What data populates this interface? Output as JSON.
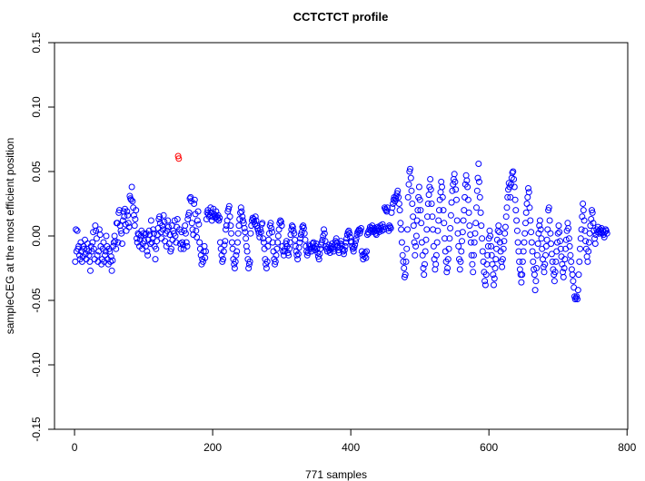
{
  "chart_data": {
    "type": "scatter",
    "title": "CCTCTCT profile",
    "xlabel": "771 samples",
    "ylabel": "sampleCEG at the most efficient position",
    "xlim": [
      -29,
      801
    ],
    "ylim": [
      -0.15,
      0.15
    ],
    "x_ticks": [
      0,
      200,
      400,
      600,
      800
    ],
    "x_tick_labels": [
      "0",
      "200",
      "400",
      "600",
      "800"
    ],
    "y_ticks": [
      -0.15,
      -0.1,
      -0.05,
      0,
      0.05,
      0.1,
      0.15
    ],
    "y_tick_labels": [
      "-0.15",
      "-0.10",
      "-0.05",
      "0.00",
      "0.05",
      "0.10",
      "0.15"
    ],
    "grid": false,
    "marker": "open-circle",
    "point_color": "#0000ff",
    "highlight_color": "#ff0000",
    "highlight_x": [
      150,
      151
    ],
    "x": "sample index 1..771",
    "y": [
      -0.02,
      0.005,
      -0.012,
      0.004,
      -0.01,
      -0.008,
      -0.015,
      -0.018,
      -0.005,
      -0.012,
      -0.02,
      -0.016,
      -0.008,
      -0.01,
      -0.003,
      -0.014,
      -0.018,
      -0.01,
      -0.006,
      -0.012,
      -0.015,
      -0.02,
      -0.027,
      -0.008,
      -0.012,
      -0.005,
      0.003,
      -0.01,
      -0.018,
      0.008,
      0.004,
      -0.002,
      -0.015,
      -0.02,
      -0.012,
      0.005,
      0.001,
      -0.008,
      -0.022,
      -0.018,
      -0.01,
      -0.005,
      -0.02,
      -0.015,
      -0.012,
      0,
      -0.008,
      -0.018,
      -0.022,
      -0.01,
      -0.012,
      -0.02,
      -0.016,
      -0.027,
      -0.019,
      -0.008,
      -0.005,
      0,
      -0.004,
      -0.01,
      0.01,
      0.01,
      -0.005,
      0.018,
      0.02,
      0.008,
      0.004,
      0.002,
      -0.006,
      0.012,
      0.019,
      0.015,
      0.021,
      0.009,
      0.004,
      0.019,
      0.016,
      0.01,
      0.007,
      0.031,
      0.029,
      0.028,
      0.038,
      0.027,
      0.022,
      0.016,
      0.008,
      0.013,
      0.02,
      -0.002,
      -0.005,
      0.002,
      0.001,
      -0.008,
      -0.003,
      0,
      0.004,
      -0.01,
      -0.006,
      0.002,
      -0.004,
      0.001,
      -0.008,
      0.002,
      -0.012,
      -0.015,
      -0.003,
      0.004,
      0.001,
      -0.006,
      0.012,
      -0.005,
      -0.002,
      0.005,
      0.002,
      -0.008,
      -0.018,
      -0.01,
      -0.004,
      0.001,
      0.006,
      0.013,
      0.015,
      0.01,
      0.003,
      -0.002,
      0.008,
      0.005,
      0.016,
      0.011,
      -0.004,
      0.002,
      -0.008,
      0.004,
      0.012,
      0.007,
      -0.006,
      0.001,
      -0.012,
      -0.01,
      0.008,
      -0.003,
      0.004,
      0.002,
      0.012,
      0,
      -0.005,
      0.007,
      0.013,
      0.062,
      0.06,
      0.005,
      -0.006,
      -0.01,
      0.003,
      -0.005,
      -0.007,
      -0.01,
      0.004,
      0.008,
      0.002,
      -0.005,
      -0.008,
      0.013,
      0.016,
      0.018,
      0.029,
      0.03,
      0.027,
      0.01,
      0.005,
      0.001,
      0.025,
      0.028,
      0.017,
      0.004,
      -0.001,
      0.012,
      0.019,
      0.009,
      -0.005,
      -0.01,
      -0.015,
      -0.022,
      -0.018,
      -0.02,
      -0.012,
      -0.008,
      -0.017,
      -0.012,
      0.013,
      0.018,
      0.02,
      0.017,
      0.015,
      0.016,
      0.022,
      0.018,
      0.012,
      0.015,
      0.021,
      0.017,
      0.016,
      0.014,
      0.019,
      0.015,
      0.013,
      0.016,
      0.012,
      0.014,
      -0.005,
      -0.01,
      -0.015,
      -0.02,
      -0.018,
      -0.012,
      -0.007,
      -0.004,
      0.005,
      0.008,
      0.012,
      0.019,
      0.021,
      0.023,
      0.015,
      0.008,
      0.002,
      -0.005,
      -0.01,
      -0.018,
      -0.022,
      -0.025,
      -0.02,
      -0.015,
      -0.012,
      -0.005,
      0.002,
      0.008,
      0.013,
      0.018,
      0.022,
      0.019,
      0.015,
      0.012,
      0.01,
      0.006,
      0.003,
      -0.002,
      -0.008,
      -0.012,
      -0.018,
      -0.025,
      -0.022,
      -0.02,
      0.002,
      0.008,
      0.012,
      0.014,
      0.013,
      0.011,
      0.009,
      0.015,
      0.012,
      0.008,
      0.006,
      0.004,
      0.002,
      -0.001,
      0.005,
      0.003,
      0.009,
      0.01,
      -0.002,
      -0.005,
      -0.01,
      -0.018,
      -0.022,
      -0.025,
      -0.02,
      -0.008,
      -0.003,
      0.002,
      0.008,
      0.01,
      0.006,
      0.003,
      -0.005,
      -0.012,
      -0.018,
      -0.022,
      -0.02,
      -0.015,
      -0.01,
      -0.005,
      0,
      0.005,
      0.01,
      0.012,
      0.011,
      0.008,
      -0.008,
      -0.012,
      -0.015,
      -0.012,
      -0.01,
      -0.006,
      -0.004,
      -0.008,
      -0.013,
      -0.015,
      -0.01,
      -0.005,
      0.001,
      0.005,
      0.008,
      0.007,
      0.004,
      0.002,
      -0.003,
      -0.008,
      -0.012,
      -0.015,
      -0.018,
      -0.014,
      -0.009,
      -0.005,
      -0.002,
      0.001,
      0.003,
      0.007,
      0.008,
      0.006,
      0.002,
      -0.003,
      -0.008,
      -0.012,
      -0.015,
      -0.013,
      -0.01,
      -0.007,
      -0.008,
      -0.01,
      -0.012,
      -0.009,
      -0.006,
      -0.005,
      -0.009,
      -0.011,
      -0.008,
      -0.006,
      -0.01,
      -0.013,
      -0.016,
      -0.018,
      -0.014,
      -0.01,
      -0.007,
      -0.005,
      -0.003,
      0,
      0.005,
      0.002,
      -0.004,
      -0.008,
      -0.01,
      -0.012,
      -0.009,
      -0.007,
      -0.011,
      -0.013,
      -0.01,
      -0.008,
      -0.006,
      -0.009,
      -0.012,
      -0.01,
      -0.007,
      -0.004,
      -0.002,
      -0.005,
      -0.008,
      -0.011,
      -0.013,
      -0.009,
      -0.006,
      -0.004,
      -0.007,
      -0.01,
      -0.012,
      -0.014,
      -0.011,
      -0.008,
      -0.005,
      -0.002,
      0.001,
      0.003,
      0.004,
      0.002,
      -0.001,
      -0.004,
      -0.005,
      -0.008,
      -0.01,
      -0.012,
      -0.009,
      -0.007,
      -0.004,
      -0.002,
      0.001,
      0.003,
      0.004,
      0.005,
      0.002,
      0.004,
      0.006,
      -0.012,
      -0.015,
      -0.018,
      -0.014,
      -0.016,
      -0.013,
      -0.017,
      -0.012,
      0.001,
      0.003,
      0.002,
      0.005,
      0.007,
      0.004,
      0.006,
      0.008,
      0.005,
      0.003,
      0.006,
      0.004,
      0.002,
      0.001,
      0.004,
      0.007,
      0.006,
      0.003,
      0.005,
      0.008,
      0.006,
      0.004,
      0.009,
      0.007,
      0.005,
      0.022,
      0.021,
      0.02,
      0.019,
      0.022,
      0.006,
      0.004,
      0.008,
      0.007,
      0.006,
      0.018,
      0.022,
      0.025,
      0.028,
      0.03,
      0.027,
      0.029,
      0.031,
      0.033,
      0.035,
      0.03,
      0.025,
      0.02,
      0.01,
      0.005,
      -0.005,
      -0.015,
      -0.02,
      -0.025,
      -0.032,
      -0.03,
      -0.02,
      -0.01,
      0.005,
      0.03,
      0.04,
      0.05,
      0.052,
      0.045,
      0.035,
      0.025,
      0.015,
      0.008,
      -0.005,
      -0.015,
      -0.008,
      0,
      0.012,
      0.02,
      0.03,
      0.038,
      0.028,
      0.02,
      0.01,
      -0.005,
      -0.015,
      -0.025,
      -0.03,
      -0.022,
      -0.012,
      -0.003,
      0.005,
      0.015,
      0.025,
      0.032,
      0.038,
      0.044,
      0.036,
      0.025,
      0.015,
      0.005,
      -0.008,
      -0.018,
      -0.026,
      -0.022,
      -0.015,
      -0.005,
      0.004,
      0.012,
      0.02,
      0.028,
      0.034,
      0.042,
      0.038,
      0.03,
      0.02,
      0.01,
      -0.002,
      -0.012,
      -0.02,
      -0.028,
      -0.025,
      -0.018,
      -0.01,
      -0.002,
      0.006,
      0.016,
      0.026,
      0.035,
      0.04,
      0.044,
      0.048,
      0.042,
      0.036,
      0.028,
      0.012,
      0.002,
      -0.008,
      -0.018,
      -0.026,
      -0.02,
      -0.012,
      -0.004,
      0.003,
      0.012,
      0.02,
      0.03,
      0.04,
      0.047,
      0.043,
      0.038,
      0.028,
      0.018,
      0.008,
      0.001,
      -0.005,
      -0.015,
      -0.022,
      -0.028,
      -0.015,
      -0.005,
      0.002,
      0.01,
      0.022,
      0.035,
      0.045,
      0.056,
      0.042,
      0.03,
      0.018,
      0.008,
      -0.002,
      -0.012,
      -0.02,
      -0.028,
      -0.035,
      -0.038,
      -0.03,
      -0.022,
      -0.015,
      -0.008,
      -0.002,
      0.004,
      0,
      -0.008,
      -0.015,
      -0.022,
      -0.03,
      -0.038,
      -0.033,
      -0.025,
      -0.018,
      -0.01,
      -0.003,
      0.004,
      0.008,
      0.003,
      -0.005,
      -0.012,
      -0.02,
      -0.024,
      -0.018,
      -0.01,
      -0.004,
      0.002,
      0.007,
      0.015,
      0.022,
      0.03,
      0.036,
      0.041,
      0.038,
      0.03,
      0.04,
      0.045,
      0.049,
      0.05,
      0.044,
      0.038,
      0.028,
      0.02,
      0.012,
      0.004,
      -0.005,
      -0.012,
      -0.02,
      -0.026,
      -0.03,
      -0.036,
      -0.03,
      -0.02,
      -0.012,
      -0.005,
      0.002,
      0.01,
      0.018,
      0.025,
      0.03,
      0.037,
      0.034,
      0.022,
      0.012,
      0.003,
      -0.005,
      -0.012,
      -0.02,
      -0.026,
      -0.03,
      -0.042,
      -0.035,
      -0.025,
      -0.015,
      -0.006,
      0.002,
      0.008,
      0.012,
      0.005,
      -0.002,
      -0.01,
      -0.018,
      -0.024,
      -0.028,
      -0.022,
      -0.015,
      -0.008,
      -0.003,
      0.005,
      0.02,
      0.022,
      0.012,
      0.002,
      -0.006,
      -0.014,
      -0.02,
      -0.026,
      -0.03,
      -0.035,
      -0.028,
      -0.02,
      -0.012,
      -0.005,
      0.002,
      0.008,
      0.003,
      -0.004,
      -0.01,
      -0.016,
      -0.022,
      -0.028,
      -0.032,
      -0.025,
      -0.018,
      -0.01,
      -0.003,
      0.004,
      0.01,
      0.006,
      -0.002,
      -0.008,
      -0.015,
      -0.02,
      -0.026,
      -0.03,
      -0.035,
      -0.04,
      -0.047,
      -0.049,
      -0.048,
      -0.047,
      -0.049,
      -0.042,
      -0.03,
      -0.02,
      -0.01,
      -0.002,
      0.005,
      0.015,
      0.025,
      0.02,
      0.012,
      0.004,
      -0.004,
      -0.01,
      -0.016,
      -0.02,
      -0.012,
      -0.005,
      0.002,
      0.008,
      0.013,
      0.02,
      0.018,
      0.01,
      0.004,
      -0.002,
      -0.006,
      0.001,
      0.005,
      0.003,
      0.007,
      0.004,
      0.002,
      0.005,
      0.003,
      0.006,
      0.002,
      0.004,
      0.001,
      -0.001,
      0.003,
      0.005,
      0.004,
      0.002
    ]
  }
}
